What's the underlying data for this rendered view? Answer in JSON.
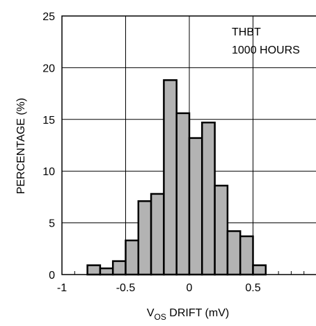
{
  "chart_data": {
    "type": "bar",
    "title": "",
    "annotation_lines": [
      "THBT",
      "1000 HOURS"
    ],
    "xlabel": {
      "prefix": "V",
      "subscript": "OS",
      "suffix": " DRIFT (mV)"
    },
    "ylabel": "PERCENTAGE (%)",
    "xlim": [
      -1,
      1
    ],
    "ylim": [
      0,
      25
    ],
    "x_ticks": [
      -1,
      -0.5,
      0,
      0.5
    ],
    "x_tick_labels": [
      "-1",
      "-0.5",
      "0",
      "0.5"
    ],
    "x_minor_step": 0.1,
    "x_major_grid": [
      -0.5,
      0,
      0.5
    ],
    "y_ticks": [
      0,
      5,
      10,
      15,
      20,
      25
    ],
    "y_tick_labels": [
      "0",
      "5",
      "10",
      "15",
      "20",
      "25"
    ],
    "grid": true,
    "bin_width": 0.1,
    "bins": [
      {
        "from": -0.8,
        "to": -0.7,
        "value": 0.9
      },
      {
        "from": -0.7,
        "to": -0.6,
        "value": 0.6
      },
      {
        "from": -0.6,
        "to": -0.5,
        "value": 1.3
      },
      {
        "from": -0.5,
        "to": -0.4,
        "value": 3.3
      },
      {
        "from": -0.4,
        "to": -0.3,
        "value": 7.1
      },
      {
        "from": -0.3,
        "to": -0.2,
        "value": 7.8
      },
      {
        "from": -0.2,
        "to": -0.1,
        "value": 18.8
      },
      {
        "from": -0.1,
        "to": 0.0,
        "value": 15.6
      },
      {
        "from": 0.0,
        "to": 0.1,
        "value": 13.2
      },
      {
        "from": 0.1,
        "to": 0.2,
        "value": 14.7
      },
      {
        "from": 0.2,
        "to": 0.3,
        "value": 8.6
      },
      {
        "from": 0.3,
        "to": 0.4,
        "value": 4.2
      },
      {
        "from": 0.4,
        "to": 0.5,
        "value": 3.7
      },
      {
        "from": 0.5,
        "to": 0.6,
        "value": 0.9
      }
    ],
    "colors": {
      "bar_fill": "#b3b3b3",
      "bar_stroke": "#000000",
      "grid": "#000000",
      "frame": "#000000",
      "background": "#ffffff"
    }
  }
}
